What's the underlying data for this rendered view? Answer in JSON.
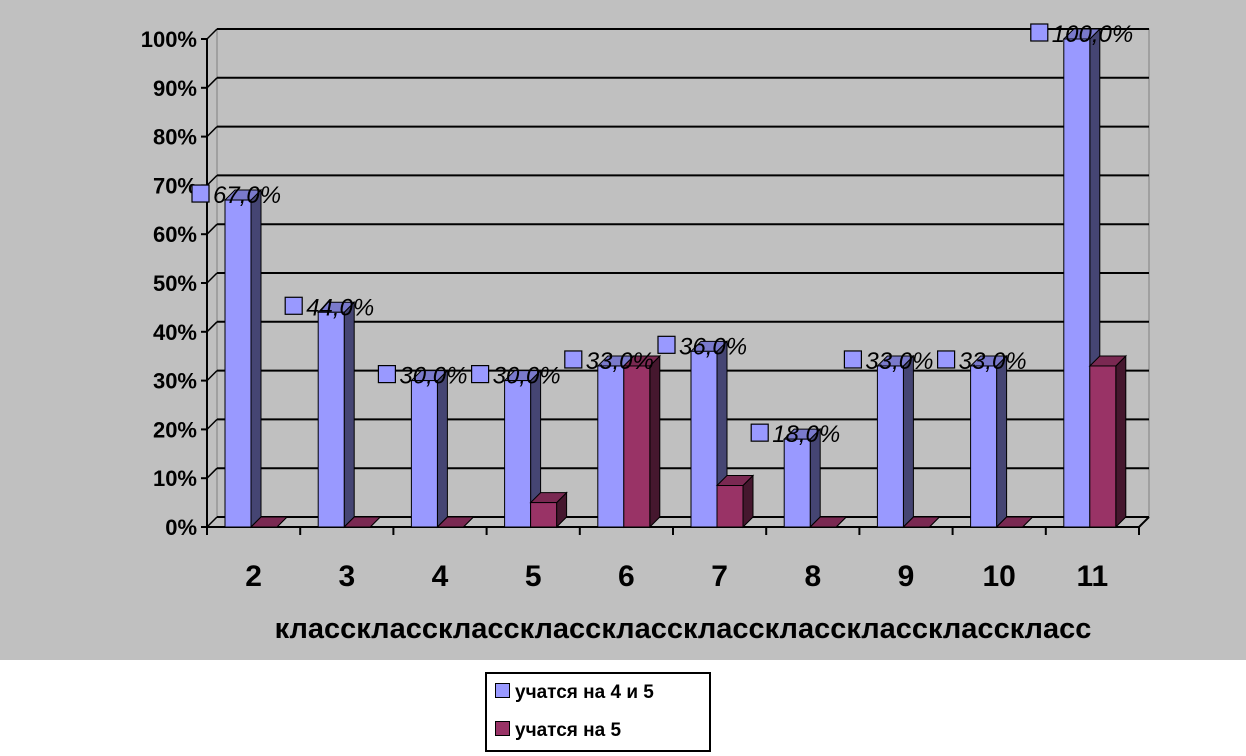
{
  "chart_data": {
    "type": "bar",
    "categories": [
      "2",
      "3",
      "4",
      "5",
      "6",
      "7",
      "8",
      "9",
      "10",
      "11"
    ],
    "category_suffix": "класс",
    "series": [
      {
        "name": "учатся на 4 и 5",
        "values": [
          67,
          44,
          30,
          30,
          33,
          36,
          18,
          33,
          33,
          100
        ],
        "color": "#9999ff",
        "data_labels": [
          "67,0%",
          "44,0%",
          "30,0%",
          "30,0%",
          "33,0%",
          "36,0%",
          "18,0%",
          "33,0%",
          "33,0%",
          "100,0%"
        ]
      },
      {
        "name": "учатся на 5",
        "values": [
          0,
          0,
          0,
          5,
          33,
          8.5,
          0,
          0,
          0,
          33
        ],
        "color": "#993366"
      }
    ],
    "yticks": [
      "0%",
      "10%",
      "20%",
      "30%",
      "40%",
      "50%",
      "60%",
      "70%",
      "80%",
      "90%",
      "100%"
    ],
    "ylim": [
      0,
      100
    ],
    "grid": true,
    "legend_position": "bottom",
    "plot_background": "#c0c0c0"
  }
}
